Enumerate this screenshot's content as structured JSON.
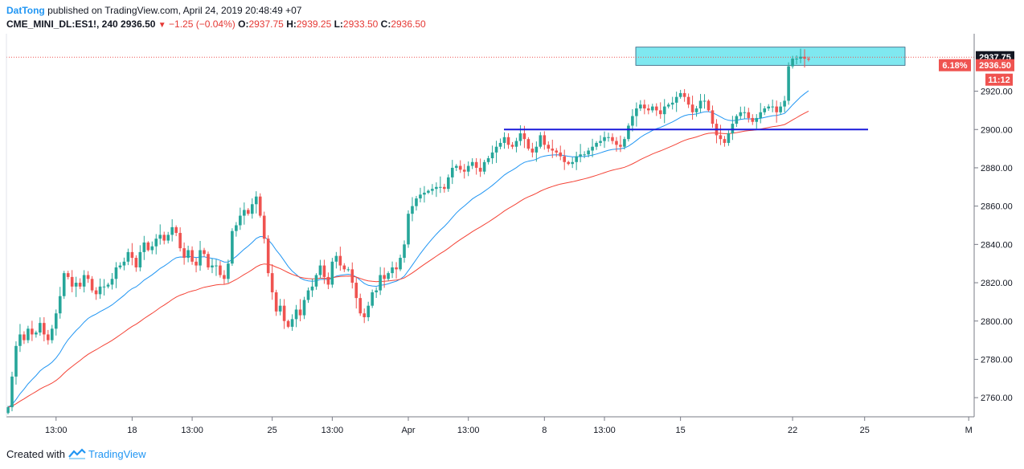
{
  "header": {
    "author": "DatTong",
    "published": "published on TradingView.com, April 24, 2019 20:48:49 +07"
  },
  "symbol": {
    "name": "CME_MINI_DL:ES1!, 240",
    "last": "2936.50",
    "change": "−1.25 (−0.04%)",
    "open_label": "O:",
    "open": "2937.75",
    "high_label": "H:",
    "high": "2939.25",
    "low_label": "L:",
    "low": "2933.50",
    "close_label": "C:",
    "close": "2936.50"
  },
  "footer": {
    "created_with": "Created with",
    "brand": "TradingView"
  },
  "colors": {
    "up": "#26a69a",
    "down": "#ef5350",
    "ma_fast": "#2196f3",
    "ma_slow": "#f44336",
    "support_line": "#1a1adb",
    "zone": "#7fe8f0"
  },
  "chart_data": {
    "type": "candlestick",
    "y_axis": {
      "range": [
        2750,
        2950
      ],
      "ticks": [
        2760,
        2780,
        2800,
        2820,
        2840,
        2860,
        2880,
        2900,
        2920
      ]
    },
    "x_axis": {
      "ticks": [
        {
          "label": "13:00",
          "bar": 12
        },
        {
          "label": "18",
          "bar": 31
        },
        {
          "label": "13:00",
          "bar": 46
        },
        {
          "label": "25",
          "bar": 66
        },
        {
          "label": "13:00",
          "bar": 81
        },
        {
          "label": "Apr",
          "bar": 100
        },
        {
          "label": "13:00",
          "bar": 115
        },
        {
          "label": "8",
          "bar": 134
        },
        {
          "label": "13:00",
          "bar": 149
        },
        {
          "label": "15",
          "bar": 168
        },
        {
          "label": "22",
          "bar": 196
        },
        {
          "label": "25",
          "bar": 214
        },
        {
          "label": "M",
          "bar": 240
        }
      ]
    },
    "price_labels": {
      "zone_top": "2937.75",
      "last": "2936.50",
      "percent": "6.18%",
      "countdown": "11:12"
    },
    "support_level": 2900,
    "zone": [
      2933.5,
      2943
    ],
    "close": [
      2755,
      2771,
      2787,
      2793,
      2790,
      2796,
      2793,
      2794,
      2799,
      2793,
      2790,
      2796,
      2804,
      2813,
      2825,
      2823,
      2818,
      2820,
      2818,
      2824,
      2822,
      2816,
      2814,
      2818,
      2818,
      2819,
      2822,
      2828,
      2829,
      2831,
      2836,
      2833,
      2828,
      2836,
      2841,
      2837,
      2839,
      2843,
      2845,
      2842,
      2845,
      2849,
      2846,
      2838,
      2833,
      2837,
      2831,
      2829,
      2837,
      2835,
      2828,
      2829,
      2829,
      2824,
      2822,
      2830,
      2847,
      2850,
      2855,
      2858,
      2856,
      2861,
      2865,
      2855,
      2843,
      2825,
      2815,
      2805,
      2808,
      2800,
      2797,
      2801,
      2806,
      2803,
      2811,
      2816,
      2818,
      2824,
      2829,
      2823,
      2819,
      2831,
      2834,
      2829,
      2827,
      2827,
      2820,
      2812,
      2804,
      2802,
      2808,
      2815,
      2816,
      2824,
      2822,
      2825,
      2828,
      2827,
      2833,
      2840,
      2856,
      2860,
      2864,
      2866,
      2867,
      2868,
      2869,
      2870,
      2870,
      2869,
      2875,
      2880,
      2881,
      2879,
      2878,
      2881,
      2883,
      2880,
      2878,
      2883,
      2885,
      2888,
      2891,
      2893,
      2896,
      2892,
      2891,
      2894,
      2898,
      2895,
      2890,
      2888,
      2891,
      2897,
      2892,
      2890,
      2889,
      2888,
      2886,
      2883,
      2882,
      2883,
      2886,
      2887,
      2887,
      2889,
      2891,
      2893,
      2894,
      2896,
      2896,
      2894,
      2892,
      2891,
      2895,
      2902,
      2907,
      2911,
      2913,
      2911,
      2910,
      2912,
      2910,
      2908,
      2912,
      2913,
      2914,
      2917,
      2919,
      2917,
      2913,
      2909,
      2911,
      2915,
      2915,
      2910,
      2903,
      2897,
      2895,
      2893,
      2898,
      2903,
      2907,
      2909,
      2909,
      2906,
      2904,
      2906,
      2909,
      2911,
      2912,
      2912,
      2909,
      2912,
      2915,
      2933,
      2937,
      2937,
      2938,
      2937,
      2936.5
    ],
    "moving_averages": [
      {
        "period": "fast",
        "color": "#2196f3"
      },
      {
        "period": "slow",
        "color": "#f44336"
      }
    ]
  }
}
